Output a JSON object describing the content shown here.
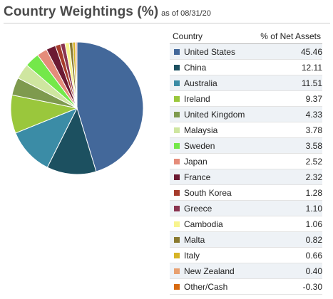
{
  "header": {
    "title": "Country Weightings (%)",
    "as_of": "as of 08/31/20"
  },
  "table": {
    "col_country": "Country",
    "col_value": "% of Net Assets"
  },
  "chart_data": {
    "type": "pie",
    "title": "Country Weightings (%)",
    "categories": [
      "United States",
      "China",
      "Australia",
      "Ireland",
      "United Kingdom",
      "Malaysia",
      "Sweden",
      "Japan",
      "France",
      "South Korea",
      "Greece",
      "Cambodia",
      "Malta",
      "Italy",
      "New Zealand",
      "Other/Cash"
    ],
    "values": [
      45.46,
      12.11,
      11.51,
      9.37,
      4.33,
      3.78,
      3.58,
      2.52,
      2.32,
      1.28,
      1.1,
      1.06,
      0.82,
      0.66,
      0.4,
      -0.3
    ],
    "labels": [
      "45.46",
      "12.11",
      "11.51",
      "9.37",
      "4.33",
      "3.78",
      "3.58",
      "2.52",
      "2.32",
      "1.28",
      "1.10",
      "1.06",
      "0.82",
      "0.66",
      "0.40",
      "-0.30"
    ],
    "colors": [
      "#43689a",
      "#1c5060",
      "#3b8ca6",
      "#9ac73c",
      "#7e9a4e",
      "#cfe6a0",
      "#74e84a",
      "#e58c7a",
      "#6c1a33",
      "#a63c2c",
      "#8a3450",
      "#f8f48e",
      "#8a7a30",
      "#d7b426",
      "#e8a070",
      "#d86a10"
    ],
    "legend": "right"
  }
}
